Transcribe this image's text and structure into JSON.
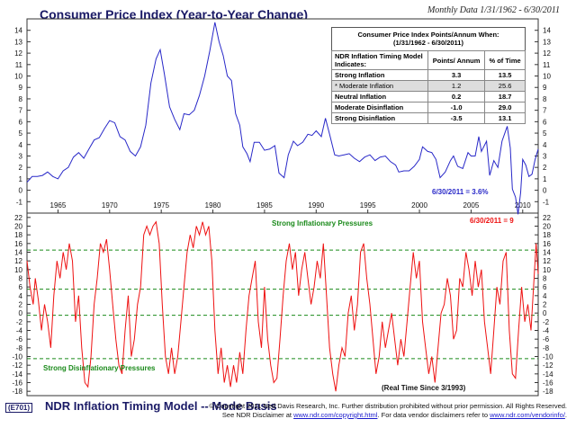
{
  "header": {
    "title": "Consumer Price Index (Year-to-Year Change)",
    "subtitle": "Monthly Data 1/31/1962 - 6/30/2011"
  },
  "table": {
    "caption_line1": "Consumer Price Index Points/Annum When:",
    "caption_line2": "(1/31/1962 - 6/30/2011)",
    "col1": "NDR Inflation Timing Model Indicates:",
    "col2": "Points/ Annum",
    "col3": "% of Time",
    "rows": [
      {
        "label": "Strong Inflation",
        "points": "3.3",
        "pct": "13.5"
      },
      {
        "label": "* Moderate Inflation",
        "points": "1.2",
        "pct": "25.6"
      },
      {
        "label": "Neutral Inflation",
        "points": "0.2",
        "pct": "18.7"
      },
      {
        "label": "Moderate Disinflation",
        "points": "-1.0",
        "pct": "29.0"
      },
      {
        "label": "Strong Disinflation",
        "points": "-3.5",
        "pct": "13.1"
      }
    ]
  },
  "footer": {
    "code": "(E701)",
    "title": "NDR Inflation Timing Model -- Mode Basis",
    "copyright1": "© Copyright 2011 Ned Davis Research, Inc. Further distribution prohibited without prior permission. All Rights Reserved.",
    "copyright2_a": "See NDR Disclaimer at ",
    "copyright2_link1": "www.ndr.com/copyright.html",
    "copyright2_b": ". For data vendor disclaimers refer to ",
    "copyright2_link2": "www.ndr.com/vendorinfo/",
    "copyright2_c": "."
  },
  "chart_data": [
    {
      "type": "line",
      "name": "cpi",
      "color": "#2828c8",
      "ylim": [
        -2,
        15
      ],
      "xlim": [
        1962.0,
        2011.5
      ],
      "yticks": [
        -1,
        0,
        1,
        2,
        3,
        4,
        5,
        6,
        7,
        8,
        9,
        10,
        11,
        12,
        13,
        14
      ],
      "xticks": [
        1965,
        1970,
        1975,
        1980,
        1985,
        1990,
        1995,
        2000,
        2005,
        2010
      ],
      "annotation": "6/30/2011 = 3.6%",
      "points": [
        [
          1962.0,
          0.7
        ],
        [
          1962.5,
          1.2
        ],
        [
          1963.0,
          1.2
        ],
        [
          1963.5,
          1.3
        ],
        [
          1964.0,
          1.6
        ],
        [
          1964.5,
          1.2
        ],
        [
          1965.0,
          1.0
        ],
        [
          1965.5,
          1.7
        ],
        [
          1966.0,
          2.0
        ],
        [
          1966.5,
          2.9
        ],
        [
          1967.0,
          3.3
        ],
        [
          1967.5,
          2.8
        ],
        [
          1968.0,
          3.6
        ],
        [
          1968.5,
          4.4
        ],
        [
          1969.0,
          4.6
        ],
        [
          1969.5,
          5.4
        ],
        [
          1970.0,
          6.1
        ],
        [
          1970.5,
          5.9
        ],
        [
          1971.0,
          4.7
        ],
        [
          1971.5,
          4.4
        ],
        [
          1972.0,
          3.4
        ],
        [
          1972.5,
          3.0
        ],
        [
          1973.0,
          3.8
        ],
        [
          1973.5,
          5.7
        ],
        [
          1974.0,
          9.4
        ],
        [
          1974.5,
          11.5
        ],
        [
          1974.9,
          12.3
        ],
        [
          1975.3,
          10.2
        ],
        [
          1975.8,
          7.3
        ],
        [
          1976.3,
          6.2
        ],
        [
          1976.8,
          5.3
        ],
        [
          1977.2,
          6.7
        ],
        [
          1977.7,
          6.6
        ],
        [
          1978.2,
          7.0
        ],
        [
          1978.7,
          8.3
        ],
        [
          1979.2,
          10.0
        ],
        [
          1979.7,
          12.2
        ],
        [
          1980.2,
          14.7
        ],
        [
          1980.6,
          13.0
        ],
        [
          1981.0,
          11.8
        ],
        [
          1981.4,
          10.0
        ],
        [
          1981.8,
          9.6
        ],
        [
          1982.2,
          6.7
        ],
        [
          1982.6,
          5.7
        ],
        [
          1982.9,
          3.8
        ],
        [
          1983.3,
          3.2
        ],
        [
          1983.6,
          2.5
        ],
        [
          1984.0,
          4.2
        ],
        [
          1984.5,
          4.2
        ],
        [
          1985.0,
          3.5
        ],
        [
          1985.5,
          3.6
        ],
        [
          1986.0,
          3.9
        ],
        [
          1986.4,
          1.5
        ],
        [
          1986.9,
          1.1
        ],
        [
          1987.3,
          3.1
        ],
        [
          1987.8,
          4.3
        ],
        [
          1988.2,
          3.9
        ],
        [
          1988.7,
          4.2
        ],
        [
          1989.2,
          4.9
        ],
        [
          1989.6,
          4.8
        ],
        [
          1990.0,
          5.2
        ],
        [
          1990.5,
          4.7
        ],
        [
          1990.9,
          6.3
        ],
        [
          1991.3,
          4.9
        ],
        [
          1991.8,
          3.1
        ],
        [
          1992.2,
          3.0
        ],
        [
          1992.7,
          3.1
        ],
        [
          1993.2,
          3.2
        ],
        [
          1993.7,
          2.8
        ],
        [
          1994.2,
          2.5
        ],
        [
          1994.7,
          2.9
        ],
        [
          1995.2,
          3.1
        ],
        [
          1995.7,
          2.6
        ],
        [
          1996.2,
          2.9
        ],
        [
          1996.7,
          3.0
        ],
        [
          1997.2,
          2.5
        ],
        [
          1997.7,
          2.2
        ],
        [
          1998.0,
          1.6
        ],
        [
          1998.5,
          1.7
        ],
        [
          1999.0,
          1.7
        ],
        [
          1999.5,
          2.1
        ],
        [
          2000.0,
          2.7
        ],
        [
          2000.3,
          3.8
        ],
        [
          2000.8,
          3.4
        ],
        [
          2001.2,
          3.3
        ],
        [
          2001.6,
          2.7
        ],
        [
          2002.0,
          1.1
        ],
        [
          2002.5,
          1.6
        ],
        [
          2003.0,
          2.6
        ],
        [
          2003.3,
          3.0
        ],
        [
          2003.7,
          2.1
        ],
        [
          2004.2,
          1.9
        ],
        [
          2004.7,
          3.3
        ],
        [
          2005.0,
          3.0
        ],
        [
          2005.4,
          3.0
        ],
        [
          2005.75,
          4.7
        ],
        [
          2006.0,
          3.4
        ],
        [
          2006.5,
          4.3
        ],
        [
          2006.8,
          1.3
        ],
        [
          2007.2,
          2.6
        ],
        [
          2007.6,
          2.0
        ],
        [
          2008.0,
          4.3
        ],
        [
          2008.5,
          5.6
        ],
        [
          2008.8,
          3.7
        ],
        [
          2009.0,
          0.1
        ],
        [
          2009.3,
          -0.6
        ],
        [
          2009.55,
          -2.1
        ],
        [
          2009.8,
          -0.2
        ],
        [
          2010.0,
          2.7
        ],
        [
          2010.3,
          2.2
        ],
        [
          2010.6,
          1.2
        ],
        [
          2010.9,
          1.4
        ],
        [
          2011.2,
          2.7
        ],
        [
          2011.5,
          3.6
        ]
      ]
    },
    {
      "type": "line",
      "name": "ndr_model",
      "color": "#ee1111",
      "ylim": [
        -19,
        23
      ],
      "xlim": [
        1962.0,
        2011.5
      ],
      "yticks": [
        -18,
        -16,
        -14,
        -12,
        -10,
        -8,
        -6,
        -4,
        -2,
        0,
        2,
        4,
        6,
        8,
        10,
        12,
        14,
        16,
        18,
        20,
        22
      ],
      "reference_lines": [
        14.5,
        5.5,
        -0.5,
        -10.5
      ],
      "top_label": "Strong Inflationary Pressures",
      "bottom_label": "Strong Disinflationary Pressures",
      "annotation": "6/30/2011 = 9",
      "note": "(Real Time Since 3/1993)",
      "points": [
        [
          1962.0,
          12
        ],
        [
          1962.3,
          6
        ],
        [
          1962.6,
          2
        ],
        [
          1962.8,
          8
        ],
        [
          1963.1,
          3
        ],
        [
          1963.4,
          -4
        ],
        [
          1963.7,
          2
        ],
        [
          1964.0,
          -2
        ],
        [
          1964.3,
          -8
        ],
        [
          1964.6,
          4
        ],
        [
          1964.9,
          12
        ],
        [
          1965.2,
          8
        ],
        [
          1965.5,
          14
        ],
        [
          1965.8,
          10
        ],
        [
          1966.1,
          16
        ],
        [
          1966.4,
          12
        ],
        [
          1966.7,
          -2
        ],
        [
          1967.0,
          4
        ],
        [
          1967.3,
          -8
        ],
        [
          1967.6,
          -16
        ],
        [
          1967.9,
          -17
        ],
        [
          1968.2,
          -10
        ],
        [
          1968.5,
          2
        ],
        [
          1968.8,
          8
        ],
        [
          1969.1,
          16
        ],
        [
          1969.4,
          14
        ],
        [
          1969.7,
          17
        ],
        [
          1970.0,
          10
        ],
        [
          1970.3,
          2
        ],
        [
          1970.6,
          -6
        ],
        [
          1970.9,
          -12
        ],
        [
          1971.2,
          -14
        ],
        [
          1971.5,
          -4
        ],
        [
          1971.8,
          4
        ],
        [
          1972.1,
          -10
        ],
        [
          1972.4,
          -6
        ],
        [
          1972.7,
          2
        ],
        [
          1973.0,
          6
        ],
        [
          1973.3,
          18
        ],
        [
          1973.6,
          20
        ],
        [
          1973.9,
          18
        ],
        [
          1974.2,
          20
        ],
        [
          1974.5,
          21
        ],
        [
          1974.8,
          16
        ],
        [
          1975.1,
          2
        ],
        [
          1975.4,
          -10
        ],
        [
          1975.7,
          -14
        ],
        [
          1976.0,
          -8
        ],
        [
          1976.3,
          -14
        ],
        [
          1976.6,
          -10
        ],
        [
          1976.9,
          -2
        ],
        [
          1977.2,
          6
        ],
        [
          1977.5,
          14
        ],
        [
          1977.8,
          18
        ],
        [
          1978.1,
          15
        ],
        [
          1978.4,
          20
        ],
        [
          1978.7,
          18
        ],
        [
          1979.0,
          21
        ],
        [
          1979.3,
          18
        ],
        [
          1979.6,
          20
        ],
        [
          1979.9,
          12
        ],
        [
          1980.2,
          -4
        ],
        [
          1980.5,
          -14
        ],
        [
          1980.8,
          -8
        ],
        [
          1981.1,
          -16
        ],
        [
          1981.4,
          -12
        ],
        [
          1981.7,
          -17
        ],
        [
          1982.0,
          -12
        ],
        [
          1982.3,
          -16
        ],
        [
          1982.6,
          -9
        ],
        [
          1982.9,
          -14
        ],
        [
          1983.2,
          -4
        ],
        [
          1983.5,
          4
        ],
        [
          1983.8,
          8
        ],
        [
          1984.1,
          12
        ],
        [
          1984.4,
          -2
        ],
        [
          1984.7,
          -8
        ],
        [
          1985.0,
          6
        ],
        [
          1985.3,
          -6
        ],
        [
          1985.6,
          -12
        ],
        [
          1985.9,
          -16
        ],
        [
          1986.2,
          -15
        ],
        [
          1986.5,
          -6
        ],
        [
          1986.8,
          4
        ],
        [
          1987.1,
          12
        ],
        [
          1987.4,
          16
        ],
        [
          1987.7,
          10
        ],
        [
          1988.0,
          14
        ],
        [
          1988.3,
          4
        ],
        [
          1988.6,
          10
        ],
        [
          1988.9,
          14
        ],
        [
          1989.2,
          8
        ],
        [
          1989.5,
          2
        ],
        [
          1989.8,
          6
        ],
        [
          1990.1,
          12
        ],
        [
          1990.4,
          8
        ],
        [
          1990.7,
          16
        ],
        [
          1991.0,
          4
        ],
        [
          1991.3,
          -8
        ],
        [
          1991.6,
          -14
        ],
        [
          1991.9,
          -18
        ],
        [
          1992.2,
          -12
        ],
        [
          1992.5,
          -8
        ],
        [
          1992.8,
          -10
        ],
        [
          1993.1,
          0
        ],
        [
          1993.4,
          4
        ],
        [
          1993.7,
          -4
        ],
        [
          1994.0,
          2
        ],
        [
          1994.3,
          14
        ],
        [
          1994.6,
          16
        ],
        [
          1994.9,
          8
        ],
        [
          1995.2,
          2
        ],
        [
          1995.5,
          -6
        ],
        [
          1995.8,
          -14
        ],
        [
          1996.1,
          -10
        ],
        [
          1996.4,
          -2
        ],
        [
          1996.7,
          -8
        ],
        [
          1997.0,
          -4
        ],
        [
          1997.3,
          0
        ],
        [
          1997.6,
          -6
        ],
        [
          1997.9,
          -12
        ],
        [
          1998.2,
          -6
        ],
        [
          1998.5,
          -10
        ],
        [
          1998.8,
          -2
        ],
        [
          1999.1,
          6
        ],
        [
          1999.4,
          14
        ],
        [
          1999.7,
          8
        ],
        [
          2000.0,
          12
        ],
        [
          2000.3,
          -2
        ],
        [
          2000.6,
          -8
        ],
        [
          2000.9,
          -14
        ],
        [
          2001.2,
          -10
        ],
        [
          2001.5,
          -16
        ],
        [
          2001.8,
          -8
        ],
        [
          2002.1,
          0
        ],
        [
          2002.4,
          2
        ],
        [
          2002.7,
          8
        ],
        [
          2003.0,
          4
        ],
        [
          2003.3,
          -6
        ],
        [
          2003.6,
          -4
        ],
        [
          2003.9,
          8
        ],
        [
          2004.2,
          6
        ],
        [
          2004.5,
          14
        ],
        [
          2004.8,
          10
        ],
        [
          2005.1,
          4
        ],
        [
          2005.4,
          12
        ],
        [
          2005.7,
          6
        ],
        [
          2006.0,
          10
        ],
        [
          2006.3,
          -2
        ],
        [
          2006.6,
          -8
        ],
        [
          2006.9,
          -14
        ],
        [
          2007.2,
          -4
        ],
        [
          2007.5,
          6
        ],
        [
          2007.8,
          2
        ],
        [
          2008.1,
          12
        ],
        [
          2008.4,
          14
        ],
        [
          2008.7,
          -4
        ],
        [
          2009.0,
          -14
        ],
        [
          2009.3,
          -15
        ],
        [
          2009.6,
          -4
        ],
        [
          2009.9,
          6
        ],
        [
          2010.2,
          -2
        ],
        [
          2010.5,
          2
        ],
        [
          2010.8,
          -4
        ],
        [
          2011.1,
          8
        ],
        [
          2011.3,
          16
        ],
        [
          2011.5,
          9
        ]
      ]
    }
  ]
}
